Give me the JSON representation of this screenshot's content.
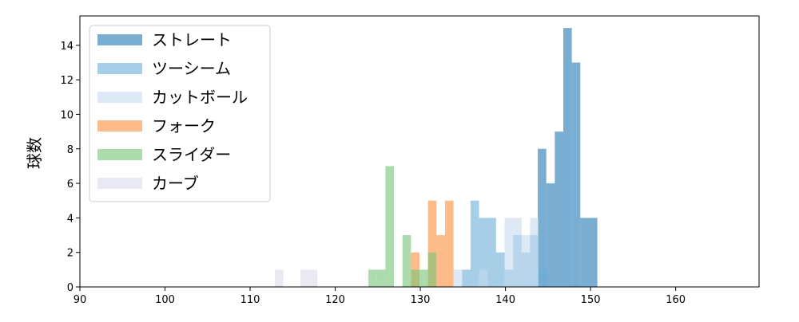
{
  "chart_data": {
    "type": "histogram",
    "ylabel": "球数",
    "xlim": [
      90,
      169.8
    ],
    "ylim": [
      0,
      15.7
    ],
    "xticks": [
      90,
      100,
      110,
      120,
      130,
      140,
      150,
      160
    ],
    "yticks": [
      0,
      2,
      4,
      6,
      8,
      10,
      12,
      14
    ],
    "legend": "upper left",
    "series": [
      {
        "name": "ストレート",
        "color": "#1f77b4",
        "bins": [
          143.8,
          144.8,
          145.8,
          146.8,
          147.8,
          148.8,
          149.8,
          150.8
        ],
        "values": [
          8,
          6,
          9,
          15,
          13,
          4,
          4
        ]
      },
      {
        "name": "ツーシーム",
        "color": "#6baed6",
        "bins": [
          134.9,
          135.9,
          136.9,
          137.9,
          138.9,
          139.9,
          140.9,
          141.9,
          142.9,
          143.9,
          144.9
        ],
        "values": [
          1,
          5,
          4,
          4,
          2,
          1,
          3,
          2,
          3,
          1
        ]
      },
      {
        "name": "カットボール",
        "color": "#c6dbef",
        "bins": [
          133.9,
          134.9,
          135.9,
          136.9,
          137.9,
          138.9,
          139.9,
          140.9,
          141.9,
          142.9,
          143.9
        ],
        "values": [
          1,
          0,
          0,
          1,
          0,
          0,
          4,
          4,
          3,
          4
        ]
      },
      {
        "name": "フォーク",
        "color": "#fd8d3c",
        "bins": [
          128.9,
          129.9,
          130.9,
          131.9,
          132.9,
          133.9
        ],
        "values": [
          2,
          0,
          5,
          3,
          5
        ]
      },
      {
        "name": "スライダー",
        "color": "#74c476",
        "bins": [
          123.9,
          124.9,
          125.9,
          126.9,
          127.9,
          128.9,
          129.9,
          130.9,
          131.9
        ],
        "values": [
          1,
          1,
          7,
          0,
          3,
          1,
          1,
          2
        ]
      },
      {
        "name": "カーブ",
        "color": "#dadaeb",
        "bins": [
          112.9,
          113.9,
          114.9,
          115.9,
          116.9,
          117.9
        ],
        "values": [
          1,
          0,
          0,
          1,
          1
        ]
      }
    ]
  }
}
